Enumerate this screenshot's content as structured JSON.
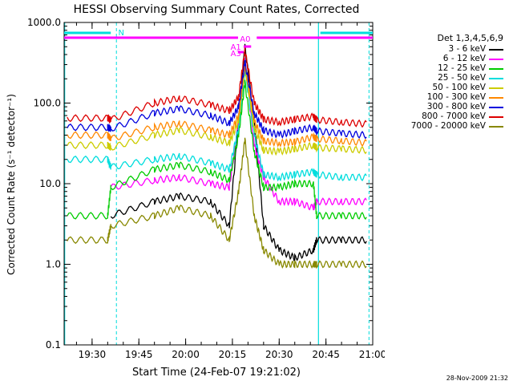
{
  "chart_data": {
    "type": "line",
    "title": "HESSI Observing Summary Count Rates, Corrected",
    "xlabel": "Start Time (24-Feb-07 19:21:02)",
    "ylabel": "Corrected Count Rate (s⁻¹ detector⁻¹)",
    "yscale": "log",
    "ylim": [
      0.1,
      1000
    ],
    "xlim": [
      "19:21:02",
      "21:00:00"
    ],
    "xticks": [
      {
        "t": 19.5,
        "label": "19:30"
      },
      {
        "t": 19.75,
        "label": "19:45"
      },
      {
        "t": 20.0,
        "label": "20:00"
      },
      {
        "t": 20.25,
        "label": "20:15"
      },
      {
        "t": 20.5,
        "label": "20:30"
      },
      {
        "t": 20.75,
        "label": "20:45"
      },
      {
        "t": 21.0,
        "label": "21:00"
      }
    ],
    "yticks": [
      {
        "v": 0.1,
        "label": "0.1"
      },
      {
        "v": 1,
        "label": "1.0"
      },
      {
        "v": 10,
        "label": "10.0"
      },
      {
        "v": 100,
        "label": "100.0"
      },
      {
        "v": 1000,
        "label": "1000.0"
      }
    ],
    "legend_title": "Det 1,3,4,5,6,9",
    "legend_position": "right",
    "x": [
      "19:22",
      "19:35",
      "19:36",
      "19:50",
      "19:58",
      "20:08",
      "20:14",
      "20:17",
      "20:19",
      "20:22",
      "20:25",
      "20:30",
      "20:35",
      "20:41",
      "20:42",
      "20:50",
      "20:58"
    ],
    "series": [
      {
        "name": "3 - 6 keV",
        "color": "#000000",
        "values": [
          null,
          null,
          4,
          6,
          7,
          6,
          3,
          60,
          500,
          60,
          3,
          1.5,
          1.2,
          1.5,
          2,
          2,
          2
        ]
      },
      {
        "name": "6 - 12 keV",
        "color": "#ff00ff",
        "values": [
          null,
          null,
          9,
          11,
          12,
          10,
          9,
          60,
          330,
          30,
          12,
          6,
          6,
          5,
          6,
          6,
          6
        ]
      },
      {
        "name": "12 - 25 keV",
        "color": "#00cc00",
        "values": [
          4,
          4,
          9,
          15,
          17,
          14,
          11,
          40,
          180,
          25,
          9,
          9,
          10,
          10,
          4,
          4,
          4
        ]
      },
      {
        "name": "25 - 50 keV",
        "color": "#00dddd",
        "values": [
          20,
          20,
          16,
          20,
          22,
          18,
          15,
          50,
          260,
          40,
          13,
          12,
          13,
          14,
          13,
          12,
          12
        ]
      },
      {
        "name": "50 - 100 keV",
        "color": "#cccc00",
        "values": [
          30,
          30,
          28,
          40,
          46,
          38,
          32,
          60,
          280,
          50,
          26,
          25,
          27,
          30,
          28,
          27,
          26
        ]
      },
      {
        "name": "100 - 300 keV",
        "color": "#ff8800",
        "values": [
          40,
          40,
          36,
          50,
          56,
          46,
          40,
          70,
          300,
          60,
          34,
          32,
          33,
          38,
          36,
          34,
          32
        ]
      },
      {
        "name": "300 - 800 keV",
        "color": "#0000dd",
        "values": [
          50,
          50,
          48,
          75,
          85,
          70,
          56,
          90,
          320,
          75,
          46,
          40,
          45,
          50,
          45,
          42,
          40
        ]
      },
      {
        "name": "800 - 7000 keV",
        "color": "#dd0000",
        "values": [
          65,
          65,
          62,
          100,
          115,
          95,
          80,
          120,
          450,
          100,
          63,
          58,
          63,
          68,
          62,
          58,
          55
        ]
      },
      {
        "name": "7000 - 20000 keV",
        "color": "#888800",
        "values": [
          2,
          2,
          3,
          4,
          5,
          4,
          2,
          8,
          35,
          4,
          1.5,
          1,
          1,
          1,
          1,
          1,
          1
        ]
      }
    ],
    "annotations": [
      {
        "text": "N",
        "color": "#00dddd"
      },
      {
        "text": "A1",
        "color": "#ff00ff"
      },
      {
        "text": "A0",
        "color": "#ff00ff"
      },
      {
        "text": "A3",
        "color": "#ff00ff"
      }
    ]
  },
  "footer_stamp": "28-Nov-2009 21:32"
}
